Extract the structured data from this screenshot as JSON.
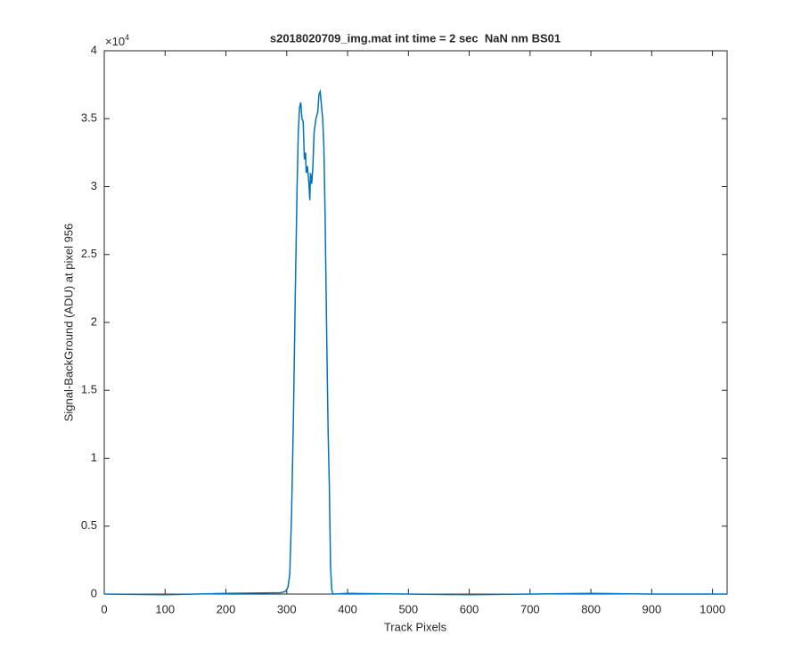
{
  "chart_data": {
    "type": "line",
    "title": "s2018020709_img.mat int time = 2 sec  NaN nm BS01",
    "x_label": "Track Pixels",
    "y_label": "Signal-BackGround (ADU) at pixel 956",
    "y_multiplier": {
      "base": "×10",
      "exponent": "4"
    },
    "x": [
      0,
      100,
      200,
      290,
      298,
      302,
      305,
      308,
      311,
      314,
      317,
      319,
      321,
      323,
      325,
      327,
      329,
      331,
      332,
      334,
      336,
      338,
      339,
      341,
      343,
      345,
      348,
      351,
      353,
      355,
      357,
      359,
      361,
      363,
      366,
      368,
      370,
      372,
      374,
      376,
      400,
      500,
      600,
      700,
      800,
      900,
      1024
    ],
    "series": [
      {
        "color": "#0072bd",
        "values": [
          0,
          -50,
          50,
          100,
          200,
          500,
          1500,
          6000,
          13000,
          22000,
          30000,
          34000,
          35800,
          36200,
          35000,
          34800,
          32000,
          32500,
          31000,
          31500,
          30500,
          29000,
          31000,
          30200,
          31500,
          34000,
          35000,
          35500,
          36800,
          37000,
          36000,
          35000,
          33000,
          28000,
          18000,
          12000,
          8000,
          2000,
          300,
          0,
          50,
          0,
          -50,
          0,
          50,
          0,
          0
        ]
      }
    ],
    "xlim": [
      0,
      1024
    ],
    "ylim": [
      0,
      40000
    ],
    "xticks": [
      0,
      100,
      200,
      300,
      400,
      500,
      600,
      700,
      800,
      900,
      1000
    ],
    "yticks": [
      0,
      {
        "value": 5000,
        "label": "0.5"
      },
      {
        "value": 10000,
        "label": "1"
      },
      {
        "value": 15000,
        "label": "1.5"
      },
      {
        "value": 20000,
        "label": "2"
      },
      {
        "value": 25000,
        "label": "2.5"
      },
      {
        "value": 30000,
        "label": "3"
      },
      {
        "value": 35000,
        "label": "3.5"
      },
      {
        "value": 40000,
        "label": "4"
      }
    ],
    "grid": false
  }
}
